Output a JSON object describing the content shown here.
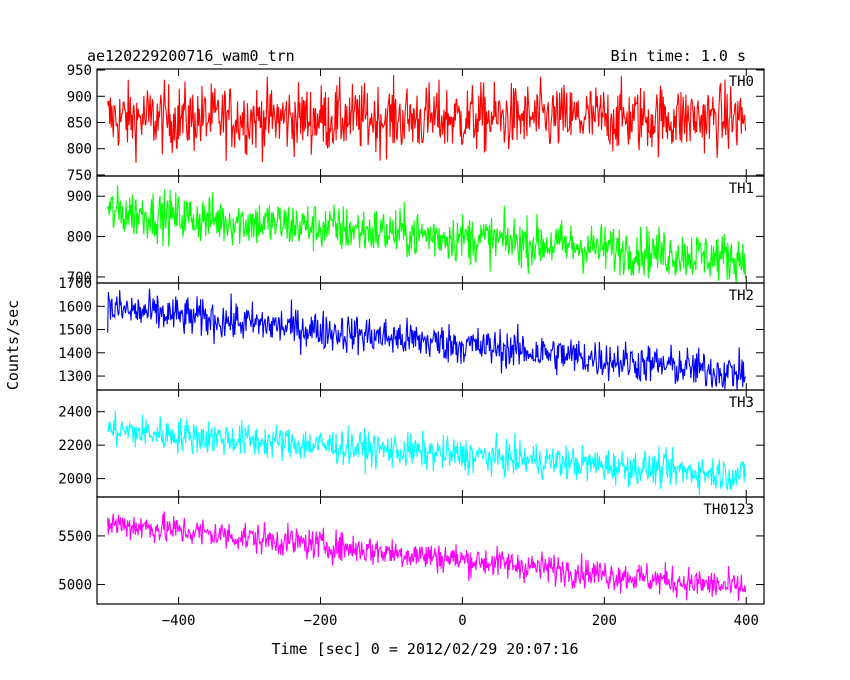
{
  "header": {
    "title": "ae120229200716_wam0_trn",
    "bin_time": "Bin time: 1.0 s"
  },
  "chart_data": {
    "type": "line",
    "xlabel": "Time [sec] 0 = 2012/02/29 20:07:16",
    "ylabel": "Counts/sec",
    "xlim": [
      -515,
      425
    ],
    "xticks": [
      -400,
      -200,
      0,
      200,
      400
    ],
    "x_start": -500,
    "x_end": 399,
    "x_step": 1,
    "panels": [
      {
        "name": "TH0",
        "color": "#ff0000",
        "ylim": [
          748,
          952
        ],
        "yticks": [
          750,
          800,
          850,
          900,
          950
        ],
        "trend_start": 858,
        "trend_end": 858,
        "noise_sigma": 32
      },
      {
        "name": "TH1",
        "color": "#00ff00",
        "ylim": [
          685,
          950
        ],
        "yticks": [
          700,
          800,
          900
        ],
        "trend_start": 862,
        "trend_end": 745,
        "noise_sigma": 30
      },
      {
        "name": "TH2",
        "color": "#0000ff",
        "ylim": [
          1240,
          1700
        ],
        "yticks": [
          1300,
          1400,
          1500,
          1600,
          1700
        ],
        "trend_start": 1590,
        "trend_end": 1310,
        "noise_sigma": 42
      },
      {
        "name": "TH3",
        "color": "#00ffff",
        "ylim": [
          1890,
          2530
        ],
        "yticks": [
          2000,
          2200,
          2400
        ],
        "trend_start": 2290,
        "trend_end": 2020,
        "noise_sigma": 52
      },
      {
        "name": "TH0123",
        "color": "#ff00ff",
        "ylim": [
          4800,
          5900
        ],
        "yticks": [
          5000,
          5500
        ],
        "trend_start": 5630,
        "trend_end": 4960,
        "noise_sigma": 78
      }
    ]
  }
}
